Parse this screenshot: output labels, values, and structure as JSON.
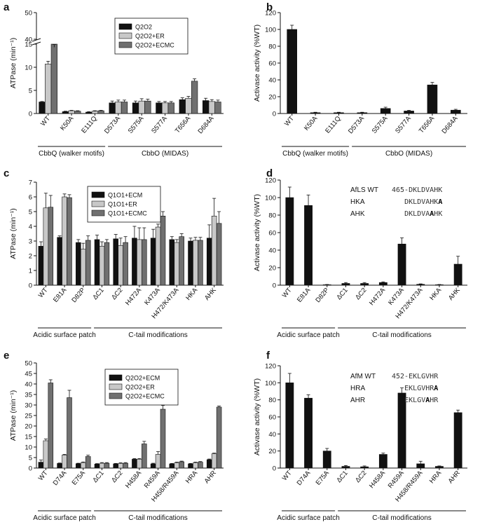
{
  "colors": {
    "black": "#111111",
    "light": "#c8c8c8",
    "dark": "#707070"
  },
  "chart_data": [
    {
      "id": "a",
      "type": "bar",
      "letter": "a",
      "ylabel": "ATPase (min⁻¹)",
      "yticks_low": [
        "0",
        "5",
        "10",
        "15"
      ],
      "yticks_high": [
        "40",
        "50"
      ],
      "categories": [
        "WT",
        "K50A",
        "E111Q",
        "D573A",
        "S575A",
        "S577A",
        "T656A",
        "D684A"
      ],
      "series": [
        {
          "name": "Q2O2",
          "values": [
            2.5,
            0.4,
            0.3,
            2.3,
            2.3,
            2.3,
            3.0,
            2.8
          ],
          "errors": [
            0.1,
            0.1,
            0.1,
            0.4,
            0.4,
            0.3,
            0.4,
            0.5
          ]
        },
        {
          "name": "Q2O2+ER",
          "values": [
            10.7,
            0.6,
            0.5,
            2.5,
            2.7,
            2.3,
            3.3,
            2.6
          ],
          "errors": [
            0.6,
            0.1,
            0.1,
            0.4,
            0.5,
            0.3,
            0.4,
            0.4
          ]
        },
        {
          "name": "Q2O2+ECMC",
          "values": [
            37,
            0.5,
            0.6,
            2.5,
            2.7,
            2.3,
            7.0,
            2.5
          ],
          "errors": [
            1.0,
            0.1,
            0.1,
            0.4,
            0.4,
            0.3,
            0.5,
            0.4
          ]
        }
      ],
      "groups": [
        {
          "label": "CbbQ (walker motifs)",
          "from": 0,
          "to": 2
        },
        {
          "label": "CbbO (MIDAS)",
          "from": 3,
          "to": 7
        }
      ]
    },
    {
      "id": "b",
      "type": "bar",
      "letter": "b",
      "ylabel": "Activase activity (%WT)",
      "ylim": [
        0,
        120
      ],
      "yticks": [
        0,
        20,
        40,
        60,
        80,
        100,
        120
      ],
      "categories": [
        "WT",
        "K50A",
        "E111Q",
        "D573A",
        "S575A",
        "S577A",
        "T656A",
        "D684A"
      ],
      "series": [
        {
          "name": "activity",
          "values": [
            100,
            1,
            1,
            1,
            6,
            3,
            34,
            4
          ],
          "errors": [
            5,
            0.5,
            0.5,
            0.5,
            1.5,
            0.8,
            3,
            1
          ]
        }
      ],
      "groups": [
        {
          "label": "CbbQ (walker motifs)",
          "from": 0,
          "to": 2
        },
        {
          "label": "CbbO (MIDAS)",
          "from": 3,
          "to": 7
        }
      ]
    },
    {
      "id": "c",
      "type": "bar",
      "letter": "c",
      "ylabel": "ATPase (min⁻¹)",
      "ylim": [
        0,
        7
      ],
      "yticks": [
        0,
        1,
        2,
        3,
        4,
        5,
        6,
        7
      ],
      "categories": [
        "WT",
        "E81A",
        "D82P",
        "ΔC1",
        "ΔC2",
        "H472A",
        "K473A",
        "H472/K473A",
        "HKA",
        "AHK"
      ],
      "series": [
        {
          "name": "Q1O1+ECM",
          "values": [
            2.65,
            3.25,
            2.9,
            3.1,
            3.15,
            3.2,
            3.2,
            3.1,
            3.0,
            3.2
          ],
          "errors": [
            0.3,
            0.1,
            0.2,
            0.3,
            0.3,
            0.8,
            0.6,
            0.2,
            0.2,
            0.9
          ]
        },
        {
          "name": "Q1O1+ER",
          "values": [
            5.25,
            6.0,
            2.45,
            2.65,
            2.7,
            3.1,
            3.95,
            2.9,
            3.05,
            4.7
          ],
          "errors": [
            1.0,
            0.2,
            0.4,
            0.3,
            0.5,
            0.8,
            0.2,
            0.2,
            0.2,
            1.2
          ]
        },
        {
          "name": "Q1O1+ECMC",
          "values": [
            5.3,
            5.95,
            3.05,
            2.9,
            2.9,
            3.1,
            4.7,
            3.3,
            3.05,
            4.2
          ],
          "errors": [
            0.8,
            0.2,
            0.3,
            0.2,
            0.4,
            0.8,
            0.3,
            0.2,
            0.2,
            0.8
          ]
        }
      ],
      "groups": [
        {
          "label": "Acidic surface patch",
          "from": 0,
          "to": 2
        },
        {
          "label": "C-tail modifications",
          "from": 3,
          "to": 9
        }
      ]
    },
    {
      "id": "d",
      "type": "bar",
      "letter": "d",
      "ylabel": "Activase activity (%WT)",
      "ylim": [
        0,
        120
      ],
      "yticks": [
        0,
        20,
        40,
        60,
        80,
        100,
        120
      ],
      "categories": [
        "WT",
        "E81A",
        "D82P",
        "ΔC1",
        "ΔC2",
        "H472A",
        "K473A",
        "H472/K473A",
        "HKA",
        "AHK"
      ],
      "series": [
        {
          "name": "activity",
          "values": [
            100,
            91,
            0.5,
            2,
            2,
            3,
            47,
            1,
            0.5,
            24
          ],
          "errors": [
            12,
            12,
            0.3,
            1,
            1,
            0.8,
            7,
            0.5,
            0.3,
            9
          ]
        }
      ],
      "groups": [
        {
          "label": "Acidic surface patch",
          "from": 0,
          "to": 2
        },
        {
          "label": "C-tail modifications",
          "from": 3,
          "to": 9
        }
      ],
      "annotation": [
        {
          "label": "AfLS WT",
          "pre": "465-DKLDVAHK",
          "bold": "",
          "post": ""
        },
        {
          "label": "HKA",
          "pre": "DKLDVAHK",
          "bold": "A",
          "post": ""
        },
        {
          "label": "AHK",
          "pre": "DKLDVA",
          "bold": "A",
          "post": "HK"
        }
      ]
    },
    {
      "id": "e",
      "type": "bar",
      "letter": "e",
      "ylabel": "ATPase (min⁻¹)",
      "ylim": [
        0,
        50
      ],
      "yticks": [
        0,
        5,
        10,
        15,
        20,
        25,
        30,
        35,
        40,
        45,
        50
      ],
      "categories": [
        "WT",
        "D74A",
        "E75A",
        "ΔC1",
        "ΔC2",
        "H458A",
        "R459A",
        "H458/R459A",
        "HRA",
        "AHR"
      ],
      "series": [
        {
          "name": "Q2O2+ECM",
          "values": [
            2.8,
            2.2,
            2.1,
            1.9,
            2.0,
            4.2,
            2.0,
            2.0,
            2.0,
            4.0
          ],
          "errors": [
            1.0,
            0.2,
            0.2,
            0.2,
            0.2,
            0.3,
            0.3,
            0.2,
            0.2,
            0.3
          ]
        },
        {
          "name": "Q2O2+ER",
          "values": [
            13.0,
            6.2,
            2.6,
            2.3,
            2.2,
            4.2,
            6.5,
            2.5,
            2.5,
            6.8
          ],
          "errors": [
            0.8,
            0.3,
            0.3,
            0.3,
            0.3,
            0.3,
            1.3,
            0.3,
            0.3,
            0.3
          ]
        },
        {
          "name": "Q2O2+ECMC",
          "values": [
            40.5,
            33.5,
            5.5,
            2.3,
            2.3,
            11.5,
            28.0,
            3.0,
            2.8,
            29.0
          ],
          "errors": [
            1.5,
            3.5,
            0.6,
            0.3,
            0.3,
            1.2,
            1.8,
            0.3,
            0.3,
            0.5
          ]
        }
      ],
      "groups": [
        {
          "label": "Acidic surface patch",
          "from": 0,
          "to": 2
        },
        {
          "label": "C-tail modifications",
          "from": 3,
          "to": 9
        }
      ]
    },
    {
      "id": "f",
      "type": "bar",
      "letter": "f",
      "ylabel": "Activase activity (%WT)",
      "ylim": [
        0,
        120
      ],
      "yticks": [
        0,
        20,
        40,
        60,
        80,
        100,
        120
      ],
      "categories": [
        "WT",
        "D74A",
        "E75A",
        "ΔC1",
        "ΔC2",
        "H458A",
        "R459A",
        "H458/R459A",
        "HRA",
        "AHR"
      ],
      "series": [
        {
          "name": "activity",
          "values": [
            100,
            82,
            20,
            2,
            1.5,
            16,
            88,
            5,
            2,
            65
          ],
          "errors": [
            11,
            4,
            3,
            1,
            1,
            1.5,
            6,
            3,
            0.5,
            3
          ]
        }
      ],
      "groups": [
        {
          "label": "Acidic surface patch",
          "from": 0,
          "to": 2
        },
        {
          "label": "C-tail modifications",
          "from": 3,
          "to": 9
        }
      ],
      "annotation": [
        {
          "label": "AfM WT",
          "pre": "452-EKLGVHR",
          "bold": "",
          "post": ""
        },
        {
          "label": "HRA",
          "pre": "EKLGVHR",
          "bold": "A",
          "post": ""
        },
        {
          "label": "AHR",
          "pre": "EKLGV",
          "bold": "A",
          "post": "HR"
        }
      ]
    }
  ]
}
